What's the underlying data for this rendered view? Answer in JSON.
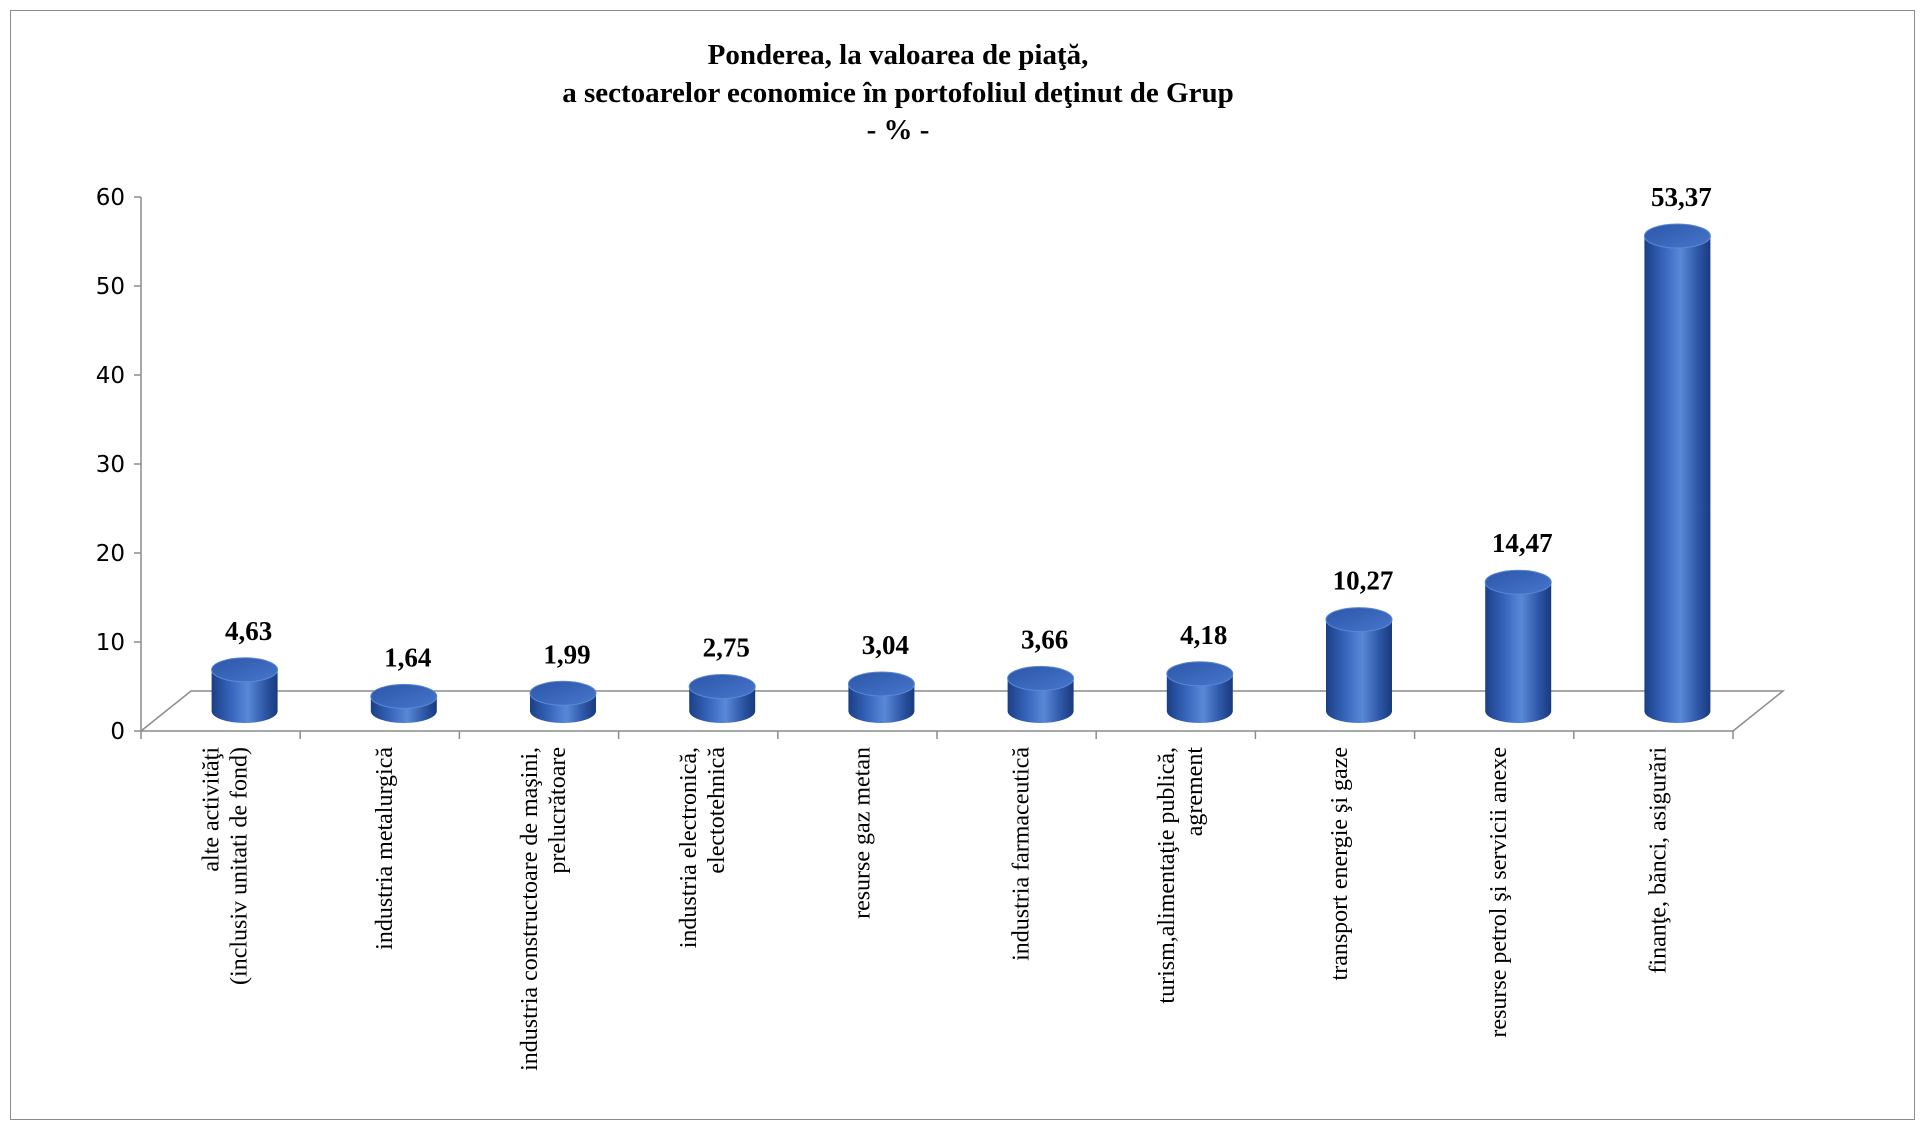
{
  "chart_data": {
    "type": "bar",
    "style": "3d-cylinder",
    "title": [
      "Ponderea, la valoarea de piaţă,",
      "a sectoarelor economice în portofoliul  deţinut de Grup",
      "- % -"
    ],
    "categories": [
      [
        "alte activităţi",
        "(inclusiv unitati de fond)"
      ],
      [
        "industria metalurgică"
      ],
      [
        "industria constructoare de maşini,",
        "prelucrătoare"
      ],
      [
        "industria electronică,",
        "electotehnică"
      ],
      [
        "resurse gaz metan"
      ],
      [
        "industria farmaceutică"
      ],
      [
        "turism,alimentaţie publică,",
        "agrement"
      ],
      [
        "transport energie şi gaze"
      ],
      [
        "resurse petrol şi servicii anexe"
      ],
      [
        "finanţe, bănci, asigurări"
      ]
    ],
    "values": [
      4.63,
      1.64,
      1.99,
      2.75,
      3.04,
      3.66,
      4.18,
      10.27,
      14.47,
      53.37
    ],
    "data_labels": [
      "4,63",
      "1,64",
      "1,99",
      "2,75",
      "3,04",
      "3,66",
      "4,18",
      "10,27",
      "14,47",
      "53,37"
    ],
    "y_ticks": [
      "0",
      "10",
      "20",
      "30",
      "40",
      "50",
      "60"
    ],
    "ylim": [
      0,
      60
    ],
    "grid": false,
    "legend": "none",
    "bar_color": "#3f6fc4"
  }
}
